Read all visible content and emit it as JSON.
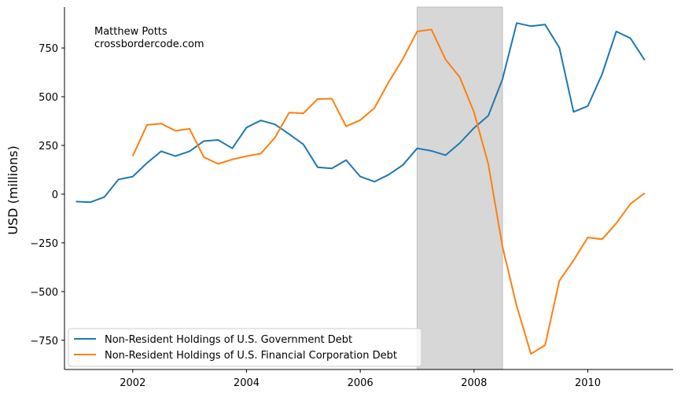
{
  "chart_data": {
    "type": "line",
    "title": "",
    "xlabel": "",
    "ylabel": "USD (millions)",
    "xlim": [
      2000.8,
      2011.5
    ],
    "ylim": [
      -900,
      960
    ],
    "xticks": [
      2002,
      2004,
      2006,
      2008,
      2010
    ],
    "yticks": [
      -750,
      -500,
      -250,
      0,
      250,
      500,
      750
    ],
    "shaded_region": {
      "x_start": 2007.0,
      "x_end": 2008.5,
      "color": "#d3d3d3"
    },
    "annotation": {
      "lines": [
        "Matthew Potts",
        "crossbordercode.com"
      ]
    },
    "legend_position": "lower-left",
    "series": [
      {
        "name": "Non-Resident Holdings of U.S. Government Debt",
        "color": "#1f77b4",
        "x": [
          2001.0,
          2001.25,
          2001.5,
          2001.75,
          2002.0,
          2002.25,
          2002.5,
          2002.75,
          2003.0,
          2003.25,
          2003.5,
          2003.75,
          2004.0,
          2004.25,
          2004.5,
          2004.75,
          2005.0,
          2005.25,
          2005.5,
          2005.75,
          2006.0,
          2006.25,
          2006.5,
          2006.75,
          2007.0,
          2007.25,
          2007.5,
          2007.75,
          2008.0,
          2008.25,
          2008.5,
          2008.75,
          2009.0,
          2009.25,
          2009.5,
          2009.75,
          2010.0,
          2010.25,
          2010.5,
          2010.75,
          2011.0
        ],
        "values": [
          -38,
          -42,
          -15,
          75,
          90,
          160,
          220,
          195,
          220,
          272,
          278,
          235,
          342,
          378,
          358,
          308,
          255,
          138,
          132,
          175,
          90,
          64,
          100,
          150,
          235,
          222,
          200,
          262,
          340,
          402,
          590,
          878,
          862,
          870,
          752,
          422,
          452,
          615,
          835,
          800,
          688
        ]
      },
      {
        "name": "Non-Resident Holdings of U.S. Financial Corporation Debt",
        "color": "#ff7f0e",
        "x": [
          2002.0,
          2002.25,
          2002.5,
          2002.75,
          2003.0,
          2003.25,
          2003.5,
          2003.75,
          2004.0,
          2004.25,
          2004.5,
          2004.75,
          2005.0,
          2005.25,
          2005.5,
          2005.75,
          2006.0,
          2006.25,
          2006.5,
          2006.75,
          2007.0,
          2007.25,
          2007.5,
          2007.75,
          2008.0,
          2008.25,
          2008.5,
          2008.75,
          2009.0,
          2009.25,
          2009.5,
          2009.75,
          2010.0,
          2010.25,
          2010.5,
          2010.75,
          2011.0
        ],
        "values": [
          195,
          355,
          362,
          325,
          335,
          190,
          155,
          178,
          195,
          208,
          290,
          418,
          415,
          488,
          490,
          348,
          380,
          442,
          575,
          695,
          835,
          845,
          690,
          600,
          420,
          155,
          -270,
          -575,
          -820,
          -775,
          -445,
          -340,
          -222,
          -232,
          -150,
          -50,
          5
        ]
      }
    ]
  }
}
